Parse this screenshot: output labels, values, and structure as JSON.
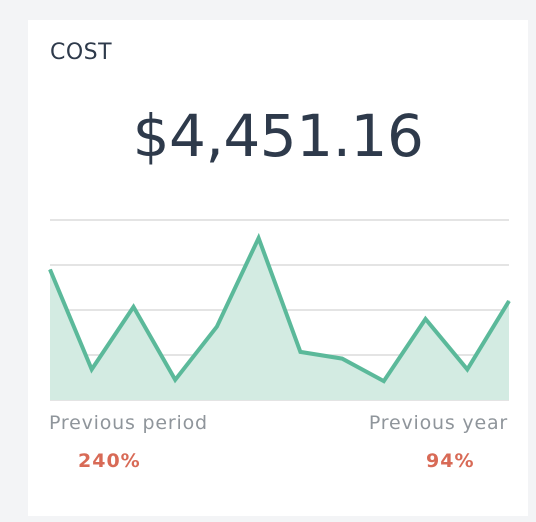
{
  "card": {
    "title": "COST",
    "value": "$4,451.16"
  },
  "comparisons": {
    "previous_period": {
      "label": "Previous period",
      "value": "240%"
    },
    "previous_year": {
      "label": "Previous year",
      "value": "94%"
    }
  },
  "colors": {
    "line": "#5bb99a",
    "fill": "#d3ebe2",
    "grid": "#dcdcdc",
    "text": "#2e3a4b",
    "label": "#8f959b",
    "accent": "#d86a56"
  },
  "chart_data": {
    "type": "area",
    "title": "",
    "xlabel": "",
    "ylabel": "",
    "grid": true,
    "ylim": [
      0,
      4
    ],
    "gridlines": [
      1,
      2,
      3,
      4
    ],
    "x": [
      0,
      1,
      2,
      3,
      4,
      5,
      6,
      7,
      8,
      9,
      10,
      11
    ],
    "series": [
      {
        "values": [
          2.9,
          0.68,
          2.07,
          0.45,
          1.63,
          3.6,
          1.07,
          0.92,
          0.42,
          1.8,
          0.68,
          2.2
        ]
      }
    ]
  }
}
